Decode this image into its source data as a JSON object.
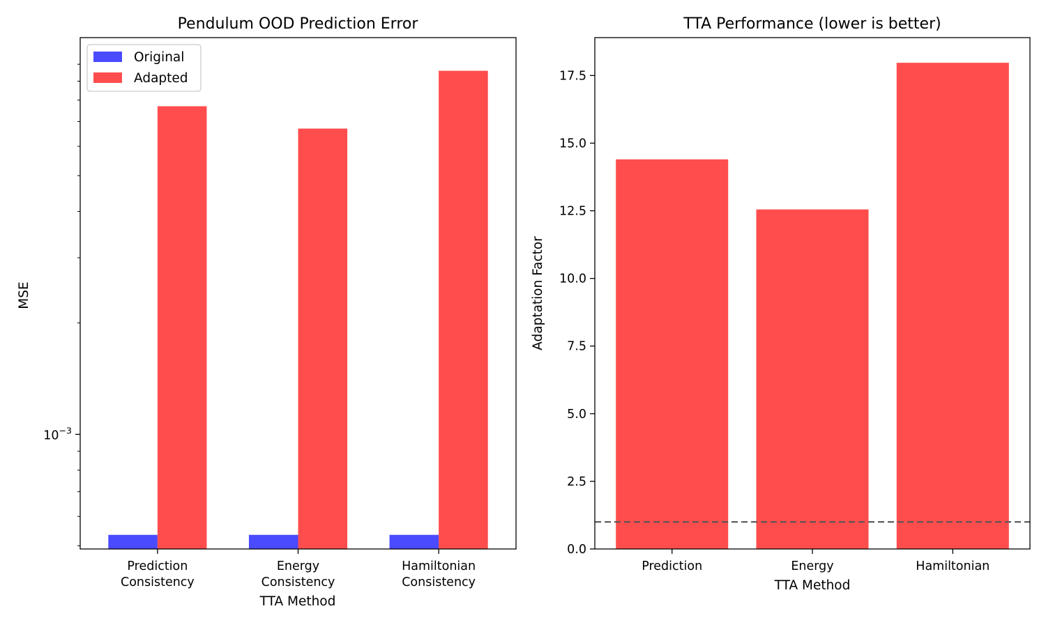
{
  "chart_data": [
    {
      "type": "bar",
      "title": "Pendulum OOD Prediction Error",
      "xlabel": "TTA Method",
      "ylabel": "MSE",
      "yscale": "log",
      "ylim": [
        0.00049,
        0.0118
      ],
      "major_tick_labels": [
        {
          "value": 0.001,
          "base": "10",
          "exp": "−3"
        }
      ],
      "minor_ticks": [
        0.0005,
        0.0006,
        0.0007,
        0.0008,
        0.0009,
        0.002,
        0.003,
        0.004,
        0.005,
        0.006,
        0.007,
        0.008,
        0.009,
        0.01
      ],
      "categories": [
        [
          "Prediction",
          "Consistency"
        ],
        [
          "Energy",
          "Consistency"
        ],
        [
          "Hamiltonian",
          "Consistency"
        ]
      ],
      "series": [
        {
          "name": "Original",
          "color": "#4a4aff",
          "values": [
            0.000535,
            0.000535,
            0.000535
          ]
        },
        {
          "name": "Adapted",
          "color": "#ff4d4d",
          "values": [
            0.0077,
            0.0067,
            0.0096
          ]
        }
      ],
      "legend": {
        "position": "upper left"
      },
      "grid": false
    },
    {
      "type": "bar",
      "title": "TTA Performance (lower is better)",
      "xlabel": "TTA Method",
      "ylabel": "Adaptation Factor",
      "ylim": [
        0,
        18.9
      ],
      "yticks": [
        0.0,
        2.5,
        5.0,
        7.5,
        10.0,
        12.5,
        15.0,
        17.5
      ],
      "ytick_labels": [
        "0.0",
        "2.5",
        "5.0",
        "7.5",
        "10.0",
        "12.5",
        "15.0",
        "17.5"
      ],
      "categories": [
        "Prediction",
        "Energy",
        "Hamiltonian"
      ],
      "values": [
        14.4,
        12.55,
        17.97
      ],
      "bar_color": "#ff4d4d",
      "reference_line": {
        "y": 1.0,
        "style": "dashed",
        "color": "#555555"
      },
      "grid": false
    }
  ]
}
